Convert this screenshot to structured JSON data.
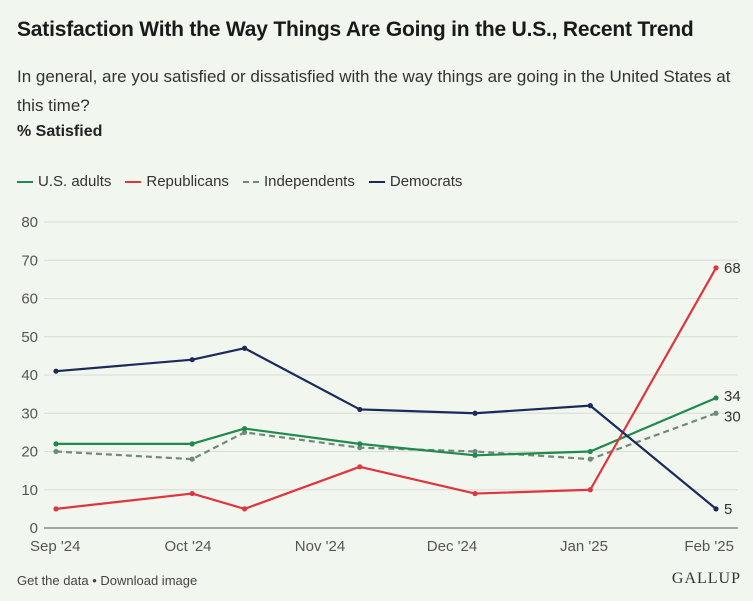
{
  "header": {
    "title": "Satisfaction With the Way Things Are Going in the U.S., Recent Trend",
    "subtitle": "In general, are you satisfied or dissatisfied with the way things are going in the United States at this time?",
    "measure": "% Satisfied"
  },
  "footer": {
    "get_data": "Get the data",
    "separator": "•",
    "download": "Download image",
    "logo": "GALLUP"
  },
  "chart_data": {
    "type": "line",
    "title": "Satisfaction With the Way Things Are Going in the U.S., Recent Trend",
    "xlabel": "",
    "ylabel": "% Satisfied",
    "ylim": [
      0,
      80
    ],
    "y_ticks": [
      0,
      10,
      20,
      30,
      40,
      50,
      60,
      70,
      80
    ],
    "x_ticks": [
      "Sep '24",
      "Oct '24",
      "Nov '24",
      "Dec '24",
      "Jan '25",
      "Feb '25"
    ],
    "x": [
      0,
      1.3,
      1.8,
      2.9,
      4,
      5.1,
      6.3
    ],
    "legend_position": "top-left",
    "series": [
      {
        "name": "U.S. adults",
        "color": "#1f8a4c",
        "dashed": false,
        "values": [
          22,
          22,
          26,
          22,
          19,
          20,
          34
        ],
        "end_label": "34"
      },
      {
        "name": "Republicans",
        "color": "#e0353c",
        "dashed": false,
        "values": [
          5,
          9,
          5,
          16,
          9,
          10,
          68
        ],
        "end_label": "68"
      },
      {
        "name": "Independents",
        "color": "#6f8a7a",
        "dashed": true,
        "values": [
          20,
          18,
          25,
          21,
          20,
          18,
          30
        ],
        "end_label": "30"
      },
      {
        "name": "Democrats",
        "color": "#1b2a5c",
        "dashed": false,
        "values": [
          41,
          44,
          47,
          31,
          30,
          32,
          5
        ],
        "end_label": "5"
      }
    ]
  }
}
